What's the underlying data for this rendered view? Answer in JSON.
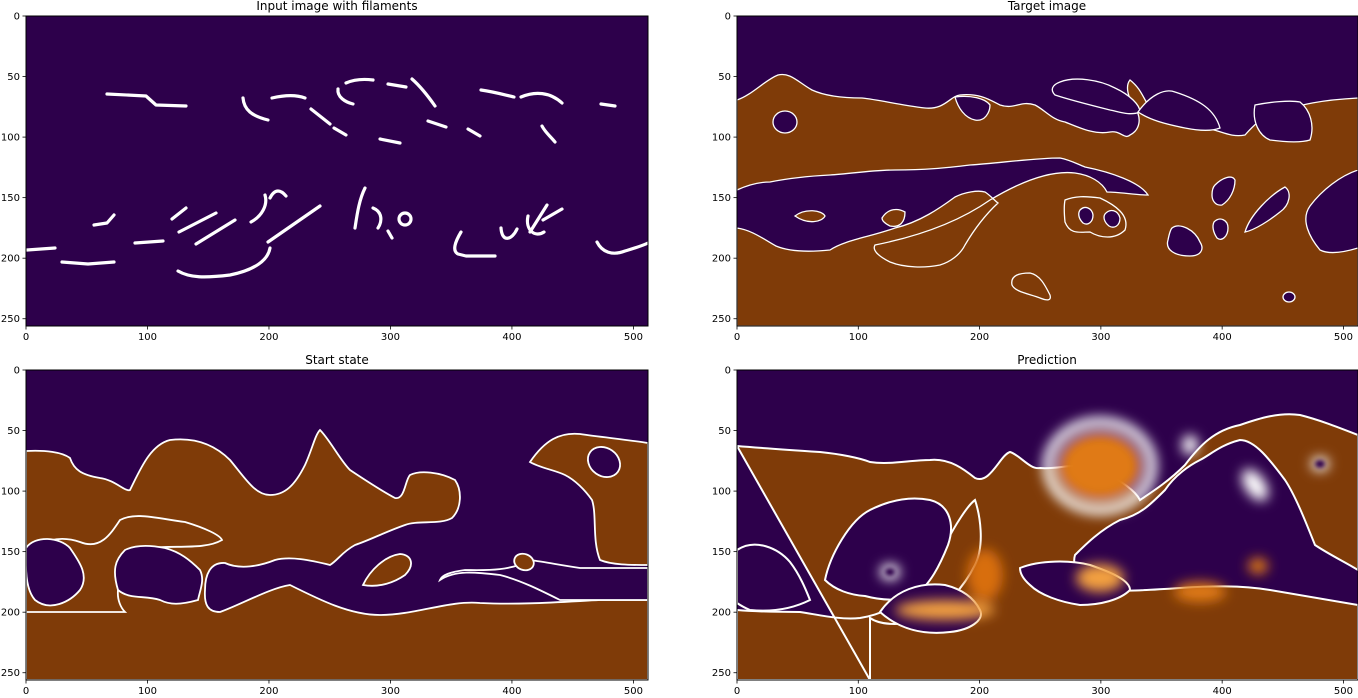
{
  "colors": {
    "dark_purple": "#2d004b",
    "orange_brown": "#7f3b08",
    "white": "#ffffff",
    "orange_bright": "#f08a1a"
  },
  "chart_data": [
    {
      "type": "heatmap",
      "title": "Input image with filaments",
      "xlim": [
        0,
        512
      ],
      "ylim": [
        256,
        0
      ],
      "x_ticks": [
        0,
        100,
        200,
        300,
        400,
        500
      ],
      "y_ticks": [
        0,
        50,
        100,
        150,
        200,
        250
      ],
      "colormap": "PuOr",
      "content": "white filament strokes on dark purple background"
    },
    {
      "type": "heatmap",
      "title": "Target image",
      "xlim": [
        0,
        512
      ],
      "ylim": [
        256,
        0
      ],
      "x_ticks": [
        0,
        100,
        200,
        300,
        400,
        500
      ],
      "y_ticks": [
        0,
        50,
        100,
        150,
        200,
        250
      ],
      "colormap": "PuOr",
      "content": "binary field of orange-brown and dark purple regions"
    },
    {
      "type": "heatmap",
      "title": "Start state",
      "xlim": [
        0,
        512
      ],
      "ylim": [
        256,
        0
      ],
      "x_ticks": [
        0,
        100,
        200,
        300,
        400,
        500
      ],
      "y_ticks": [
        0,
        50,
        100,
        150,
        200,
        250
      ],
      "colormap": "PuOr",
      "content": "smooth field of orange-brown and dark purple regions"
    },
    {
      "type": "heatmap",
      "title": "Prediction",
      "xlim": [
        0,
        512
      ],
      "ylim": [
        256,
        0
      ],
      "x_ticks": [
        0,
        100,
        200,
        300,
        400,
        500
      ],
      "y_ticks": [
        0,
        50,
        100,
        150,
        200,
        250
      ],
      "colormap": "PuOr",
      "content": "blurred field of orange-brown and dark purple regions"
    }
  ]
}
